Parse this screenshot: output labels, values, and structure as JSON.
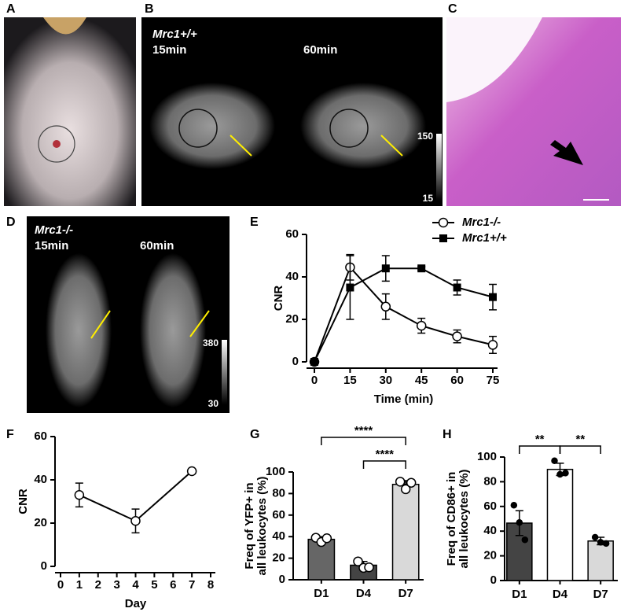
{
  "image_panels": [
    {
      "label": "A"
    },
    {
      "label": "B",
      "gene": "Mrc1+/+",
      "times": [
        "15min",
        "60min"
      ],
      "scale": [
        "150",
        "15"
      ]
    },
    {
      "label": "C"
    },
    {
      "label": "D",
      "gene": "Mrc1-/-",
      "times": [
        "15min",
        "60min"
      ],
      "scale": [
        "380",
        "30"
      ]
    }
  ],
  "chart_data": [
    {
      "type": "line",
      "panel": "E",
      "xlabel": "Time (min)",
      "ylabel": "CNR",
      "x": [
        0,
        15,
        30,
        45,
        60,
        75
      ],
      "xlim": [
        0,
        75
      ],
      "xticks": [
        0,
        15,
        30,
        45,
        60,
        75
      ],
      "ylim": [
        0,
        60
      ],
      "yticks": [
        0,
        20,
        40,
        60
      ],
      "legend": "top-right",
      "series": [
        {
          "name": "Mrc1-/-",
          "color": "#000000",
          "marker": "circle-open",
          "values": [
            0,
            44.5,
            26,
            17,
            12,
            8
          ],
          "errors": [
            0,
            6,
            6,
            3.5,
            3,
            4
          ]
        },
        {
          "name": "Mrc1+/+",
          "color": "#000000",
          "marker": "square",
          "values": [
            0,
            35,
            44,
            44,
            35,
            30.5
          ],
          "errors": [
            0,
            15,
            6,
            0.8,
            3.5,
            6
          ]
        }
      ]
    },
    {
      "type": "line",
      "panel": "F",
      "xlabel": "Day",
      "ylabel": "CNR",
      "x": [
        1,
        4,
        7
      ],
      "xlim": [
        0,
        8
      ],
      "xticks": [
        0,
        1,
        2,
        3,
        4,
        5,
        6,
        7,
        8
      ],
      "ylim": [
        0,
        60
      ],
      "yticks": [
        0,
        20,
        40,
        60
      ],
      "series": [
        {
          "color": "#000000",
          "marker": "circle-open",
          "values": [
            33,
            21,
            44
          ],
          "errors": [
            5.5,
            5.5,
            0.6
          ]
        }
      ]
    },
    {
      "type": "bar",
      "panel": "G",
      "ylabel": [
        "Freq of YFP+ in",
        "all leukocytes (%)"
      ],
      "categories": [
        "D1",
        "D4",
        "D7"
      ],
      "values": [
        37.5,
        13.5,
        88.5
      ],
      "errors": [
        2.5,
        3.5,
        3.5
      ],
      "colors": [
        "#666666",
        "#444444",
        "#d9d9d9"
      ],
      "points": [
        [
          39,
          35,
          38.5
        ],
        [
          17,
          11,
          11.5
        ],
        [
          91,
          84,
          90
        ]
      ],
      "point_marker": "circle-open",
      "ylim": [
        0,
        100
      ],
      "yticks": [
        0,
        20,
        40,
        60,
        80,
        100
      ],
      "annotations": [
        {
          "text": "****",
          "from": "D1",
          "to": "D7"
        },
        {
          "text": "****",
          "from": "D4",
          "to": "D7"
        }
      ]
    },
    {
      "type": "bar",
      "panel": "H",
      "ylabel": [
        "Freq of CD86+ in",
        "all leukocytes (%)"
      ],
      "categories": [
        "D1",
        "D4",
        "D7"
      ],
      "values": [
        46.5,
        90,
        32
      ],
      "errors": [
        10,
        5,
        3
      ],
      "colors": [
        "#444444",
        "#ffffff",
        "#d9d9d9"
      ],
      "points": [
        [
          61,
          47,
          33
        ],
        [
          97,
          86,
          87
        ],
        [
          35,
          31,
          30
        ]
      ],
      "point_marker": "circle-filled",
      "ylim": [
        0,
        100
      ],
      "yticks": [
        0,
        20,
        40,
        60,
        80,
        100
      ],
      "annotations": [
        {
          "text": "**",
          "from": "D1",
          "to": "D4"
        },
        {
          "text": "**",
          "from": "D4",
          "to": "D7"
        }
      ]
    }
  ]
}
